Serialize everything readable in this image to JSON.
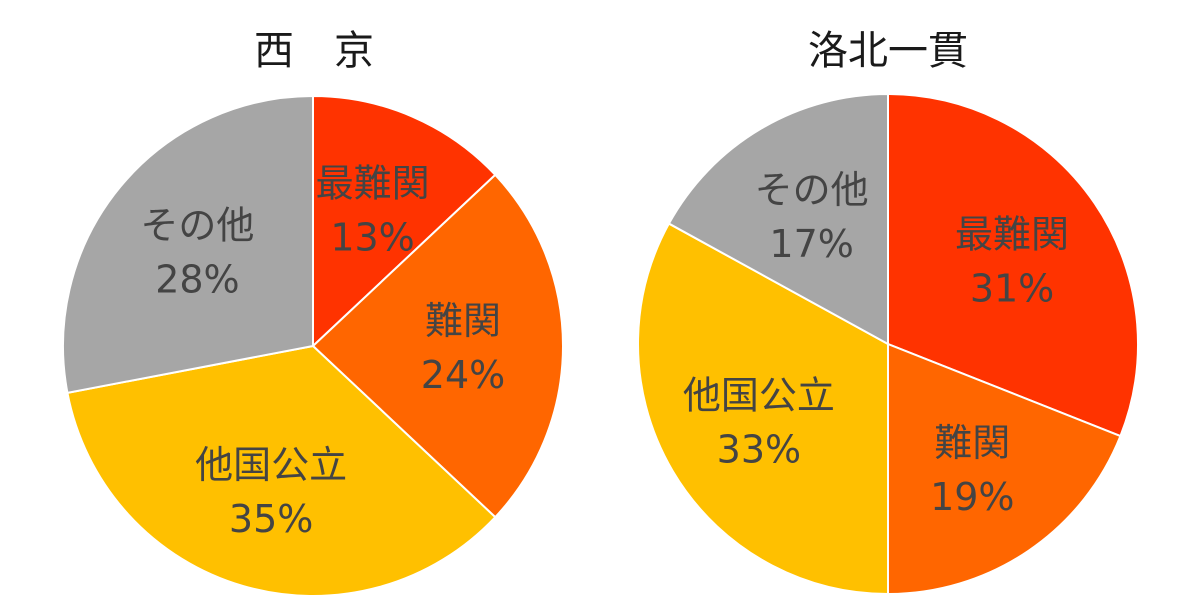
{
  "chart_data": [
    {
      "type": "pie",
      "title": "西　京",
      "slices": [
        {
          "label": "最難関",
          "value": 13,
          "display": "13%",
          "color": "#FF3300"
        },
        {
          "label": "難関",
          "value": 24,
          "display": "24%",
          "color": "#FF6600"
        },
        {
          "label": "他国公立",
          "value": 35,
          "display": "35%",
          "color": "#FFC000"
        },
        {
          "label": "その他",
          "value": 28,
          "display": "28%",
          "color": "#A6A6A6"
        }
      ]
    },
    {
      "type": "pie",
      "title": "洛北一貫",
      "slices": [
        {
          "label": "最難関",
          "value": 31,
          "display": "31%",
          "color": "#FF3300"
        },
        {
          "label": "難関",
          "value": 19,
          "display": "19%",
          "color": "#FF6600"
        },
        {
          "label": "他国公立",
          "value": 33,
          "display": "33%",
          "color": "#FFC000"
        },
        {
          "label": "その他",
          "value": 17,
          "display": "17%",
          "color": "#A6A6A6"
        }
      ]
    }
  ]
}
